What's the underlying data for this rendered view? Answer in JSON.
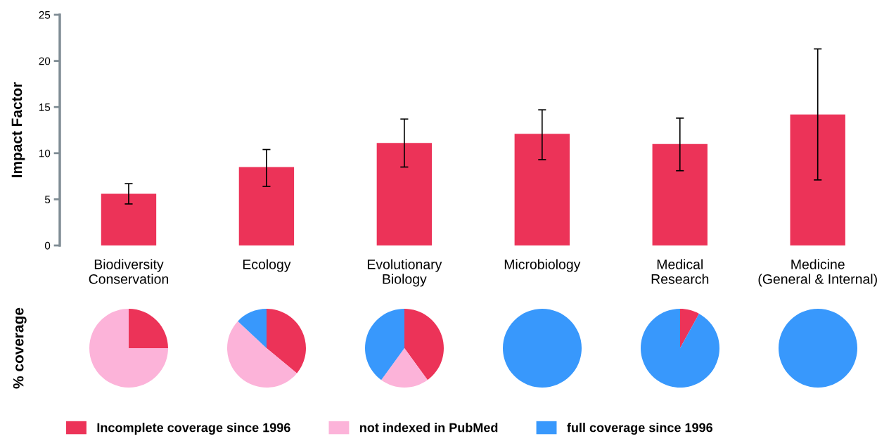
{
  "chart_data": [
    {
      "type": "bar",
      "ylabel": "Impact Factor",
      "categories": [
        "Biodiversity\nConservation",
        "Ecology",
        "Evolutionary\nBiology",
        "Microbiology",
        "Medical\nResearch",
        "Medicine\n(General & Internal)"
      ],
      "values": [
        5.6,
        8.5,
        11.1,
        12.1,
        11.0,
        14.2
      ],
      "color": "#ec3358",
      "errors": [
        [
          4.5,
          6.7
        ],
        [
          6.4,
          10.4
        ],
        [
          8.5,
          13.7
        ],
        [
          9.3,
          14.7
        ],
        [
          8.1,
          13.8
        ],
        [
          7.1,
          21.3
        ]
      ],
      "ylim": [
        0,
        25
      ],
      "yticks": [
        0,
        5,
        10,
        15,
        20,
        25
      ]
    },
    {
      "type": "pie",
      "ylabel": "% coverage",
      "legend": "bottom",
      "categories": [
        "Incomplete coverage since 1996",
        "not indexed in PubMed",
        "full coverage since 1996"
      ],
      "values": [
        25,
        75,
        0
      ],
      "colors": [
        "#ec3358",
        "#fcb3d9",
        "#3898fc"
      ]
    },
    {
      "type": "pie",
      "values": [
        36,
        51,
        13
      ],
      "colors": [
        "#ec3358",
        "#fcb3d9",
        "#3898fc"
      ]
    },
    {
      "type": "pie",
      "values": [
        40,
        20,
        40
      ],
      "colors": [
        "#ec3358",
        "#fcb3d9",
        "#3898fc"
      ]
    },
    {
      "type": "pie",
      "values": [
        0,
        0,
        100
      ],
      "colors": [
        "#ec3358",
        "#fcb3d9",
        "#3898fc"
      ]
    },
    {
      "type": "pie",
      "values": [
        8,
        0,
        92
      ],
      "colors": [
        "#ec3358",
        "#fcb3d9",
        "#3898fc"
      ]
    },
    {
      "type": "pie",
      "values": [
        0,
        0,
        100
      ],
      "colors": [
        "#ec3358",
        "#fcb3d9",
        "#3898fc"
      ]
    }
  ]
}
